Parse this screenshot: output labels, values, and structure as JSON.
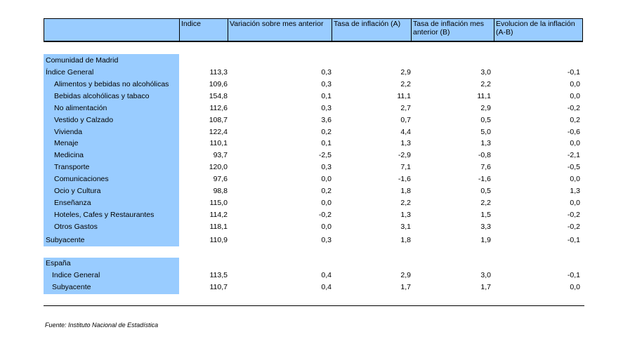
{
  "headers": {
    "indice": "Indice",
    "variacion": "Variación sobre mes anterior",
    "tasa_a": "Tasa de inflación (A)",
    "tasa_b": "Tasa de inflación mes anterior (B)",
    "evolucion": "Evolucion de la inflación (A-B)"
  },
  "madrid": {
    "title": "Comunidad de Madrid",
    "rows": [
      {
        "label": "Índice General",
        "v": [
          "113,3",
          "0,3",
          "2,9",
          "3,0",
          "-0,1"
        ]
      },
      {
        "label": "Alimentos y bebidas no alcohólicas",
        "v": [
          "109,6",
          "0,3",
          "2,2",
          "2,2",
          "0,0"
        ]
      },
      {
        "label": "Bebidas alcohólicas y tabaco",
        "v": [
          "154,8",
          "0,1",
          "11,1",
          "11,1",
          "0,0"
        ]
      },
      {
        "label": "No alimentación",
        "v": [
          "112,6",
          "0,3",
          "2,7",
          "2,9",
          "-0,2"
        ]
      },
      {
        "label": "Vestido y Calzado",
        "v": [
          "108,7",
          "3,6",
          "0,7",
          "0,5",
          "0,2"
        ]
      },
      {
        "label": "Vivienda",
        "v": [
          "122,4",
          "0,2",
          "4,4",
          "5,0",
          "-0,6"
        ]
      },
      {
        "label": "Menaje",
        "v": [
          "110,1",
          "0,1",
          "1,3",
          "1,3",
          "0,0"
        ]
      },
      {
        "label": "Medicina",
        "v": [
          "93,7",
          "-2,5",
          "-2,9",
          "-0,8",
          "-2,1"
        ]
      },
      {
        "label": "Transporte",
        "v": [
          "120,0",
          "0,3",
          "7,1",
          "7,6",
          "-0,5"
        ]
      },
      {
        "label": "Comunicaciones",
        "v": [
          "97,6",
          "0,0",
          "-1,6",
          "-1,6",
          "0,0"
        ]
      },
      {
        "label": "Ocio y Cultura",
        "v": [
          "98,8",
          "0,2",
          "1,8",
          "0,5",
          "1,3"
        ]
      },
      {
        "label": "Enseñanza",
        "v": [
          "115,0",
          "0,0",
          "2,2",
          "2,2",
          "0,0"
        ]
      },
      {
        "label": "Hoteles, Cafes y Restaurantes",
        "v": [
          "114,2",
          "-0,2",
          "1,3",
          "1,5",
          "-0,2"
        ]
      },
      {
        "label": "Otros Gastos",
        "v": [
          "118,1",
          "0,0",
          "3,1",
          "3,3",
          "-0,2"
        ]
      }
    ],
    "subyacente": {
      "label": "Subyacente",
      "v": [
        "110,9",
        "0,3",
        "1,8",
        "1,9",
        "-0,1"
      ]
    }
  },
  "espana": {
    "title": "España",
    "rows": [
      {
        "label": "Indice General",
        "v": [
          "113,5",
          "0,4",
          "2,9",
          "3,0",
          "-0,1"
        ]
      },
      {
        "label": "Subyacente",
        "v": [
          "110,7",
          "0,4",
          "1,7",
          "1,7",
          "0,0"
        ]
      }
    ]
  },
  "source": "Fuente: Instituto Nacional de Estadística"
}
